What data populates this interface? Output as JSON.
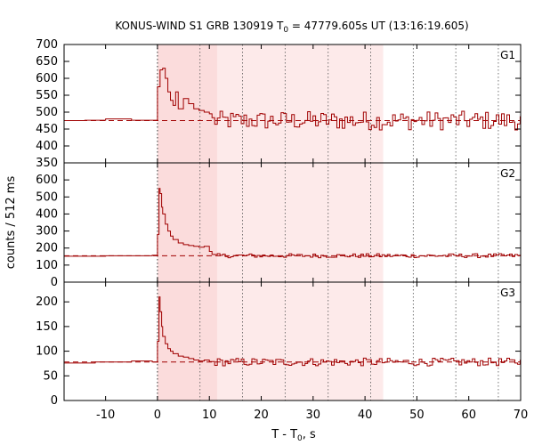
{
  "chart_data": {
    "type": "line",
    "title_main": "KONUS-WIND S1 GRB 130919 T",
    "title_sub": "0",
    "title_rest": " = 47779.605s UT (13:16:19.605)",
    "xlabel_main": "T - T",
    "xlabel_sub": "0",
    "xlabel_rest": ", s",
    "ylabel": "counts / 512 ms",
    "xlim": [
      -18,
      70
    ],
    "xticks": [
      -10,
      0,
      10,
      20,
      30,
      40,
      50,
      60,
      70
    ],
    "xtick_labels": [
      "-10",
      "0",
      "10",
      "20",
      "30",
      "40",
      "50",
      "60",
      "70"
    ],
    "shaded_intervals": [
      {
        "start": 0,
        "end": 11.5,
        "color": "#fbdcdc"
      },
      {
        "start": 11.5,
        "end": 43.5,
        "color": "#fdeaea"
      }
    ],
    "vertical_dotted_lines": [
      0,
      8.2,
      16.4,
      24.6,
      32.9,
      41.1,
      49.3,
      57.5,
      65.7
    ],
    "panels": [
      {
        "name": "G1",
        "ylim": [
          350,
          700
        ],
        "yticks": [
          350,
          400,
          450,
          500,
          550,
          600,
          650,
          700
        ],
        "ytick_labels": [
          "350",
          "400",
          "450",
          "500",
          "550",
          "600",
          "650",
          "700"
        ],
        "background_level": 475,
        "pre_x": [
          -18,
          -14,
          -10,
          -5,
          -1
        ],
        "pre_y": [
          475,
          476,
          480,
          476,
          476
        ],
        "peak_x": [
          0,
          0.5,
          1.0,
          1.5,
          2.0,
          2.5,
          3.0,
          3.5,
          4.0,
          5.0,
          6.0,
          7.0,
          8.0,
          9.0,
          10.0
        ],
        "peak_y": [
          575,
          625,
          630,
          600,
          560,
          535,
          520,
          560,
          510,
          540,
          525,
          510,
          505,
          500,
          495
        ],
        "noise_amplitude": 28,
        "tail_end": 70
      },
      {
        "name": "G2",
        "ylim": [
          0,
          700
        ],
        "yticks": [
          0,
          100,
          200,
          300,
          400,
          500,
          600
        ],
        "ytick_labels": [
          "0",
          "100",
          "200",
          "300",
          "400",
          "500",
          "600"
        ],
        "background_level": 155,
        "pre_x": [
          -18,
          -10,
          -1
        ],
        "pre_y": [
          152,
          155,
          158
        ],
        "peak_x": [
          0,
          0.3,
          0.5,
          0.8,
          1.0,
          1.5,
          2.0,
          2.5,
          3.0,
          4.0,
          5.0,
          6.0,
          7.0,
          8.0,
          9.0,
          10.0
        ],
        "peak_y": [
          280,
          550,
          520,
          440,
          400,
          340,
          300,
          270,
          250,
          230,
          220,
          215,
          210,
          205,
          210,
          180
        ],
        "noise_amplitude": 12,
        "tail_end": 70
      },
      {
        "name": "G3",
        "ylim": [
          0,
          240
        ],
        "yticks": [
          0,
          50,
          100,
          150,
          200
        ],
        "ytick_labels": [
          "0",
          "50",
          "100",
          "150",
          "200"
        ],
        "background_level": 78,
        "pre_x": [
          -18,
          -12,
          -5,
          -1
        ],
        "pre_y": [
          76,
          78,
          80,
          78
        ],
        "peak_x": [
          0,
          0.3,
          0.5,
          0.8,
          1.0,
          1.5,
          2.0,
          2.5,
          3.0,
          4.0,
          5.0,
          6.0,
          7.0,
          8.0,
          9.0,
          10.0
        ],
        "peak_y": [
          120,
          210,
          180,
          150,
          130,
          115,
          105,
          100,
          95,
          90,
          88,
          85,
          82,
          80,
          82,
          79
        ],
        "noise_amplitude": 8,
        "tail_end": 70
      }
    ]
  }
}
